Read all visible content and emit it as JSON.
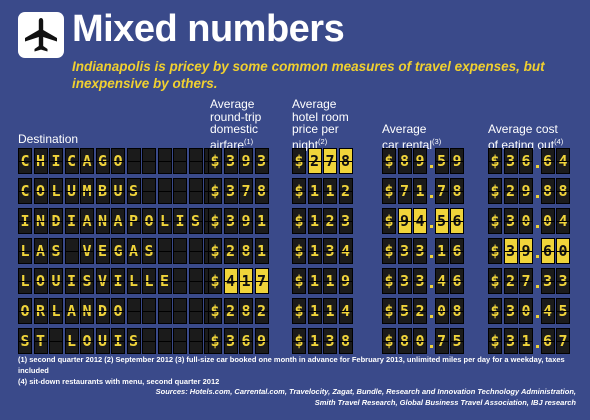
{
  "title": "Mixed numbers",
  "subtitle": "Indianapolis is pricey by some common measures of travel expenses, but inexpensive by others.",
  "icon": "airplane-icon",
  "colors": {
    "background": "#3a4a8a",
    "board_text": "#f0d43a",
    "tile": "#1b1b1b",
    "highlight": "#f0d43a"
  },
  "headers": {
    "destination": "Destination",
    "airfare": [
      "Average",
      "round-trip",
      "domestic",
      "airfare"
    ],
    "airfare_note": "(1)",
    "hotel": [
      "Average",
      "hotel room",
      "price per",
      "night"
    ],
    "hotel_note": "(2)",
    "car": [
      "Average",
      "car rental"
    ],
    "car_note": "(3)",
    "eating": [
      "Average cost",
      "of eating out"
    ],
    "eating_note": "(4)"
  },
  "chart_data": {
    "type": "table",
    "columns": [
      "Destination",
      "Average round-trip domestic airfare",
      "Average hotel room price per night",
      "Average car rental",
      "Average cost of eating out"
    ],
    "rows": [
      {
        "destination": "CHICAGO",
        "airfare": "393",
        "hotel": "278",
        "car": "89.59",
        "eating": "36.64",
        "highlight": "hotel"
      },
      {
        "destination": "COLUMBUS",
        "airfare": "378",
        "hotel": "112",
        "car": "71.78",
        "eating": "29.88",
        "highlight": ""
      },
      {
        "destination": "INDIANAPOLIS",
        "airfare": "391",
        "hotel": "123",
        "car": "94.56",
        "eating": "30.04",
        "highlight": "car"
      },
      {
        "destination": "LAS VEGAS",
        "airfare": "281",
        "hotel": "134",
        "car": "33.16",
        "eating": "39.60",
        "highlight": "eating"
      },
      {
        "destination": "LOUISVILLE",
        "airfare": "417",
        "hotel": "119",
        "car": "33.46",
        "eating": "27.33",
        "highlight": "airfare"
      },
      {
        "destination": "ORLANDO",
        "airfare": "282",
        "hotel": "114",
        "car": "52.08",
        "eating": "30.45",
        "highlight": ""
      },
      {
        "destination": "ST LOUIS",
        "airfare": "369",
        "hotel": "138",
        "car": "80.75",
        "eating": "31.67",
        "highlight": ""
      }
    ]
  },
  "notes_line1": "(1) second quarter 2012   (2) September 2012   (3) full-size car booked one month in advance for February 2013, unlimited miles per day for a weekday, taxes included",
  "notes_line2": "(4) sit-down restaurants with menu, second quarter 2012",
  "sources_line1": "Sources: Hotels.com, Carrental.com, Travelocity, Zagat, Bundle, Research and Innovation Technology Administration,",
  "sources_line2": "Smith Travel Research, Global Business Travel Association, IBJ research"
}
